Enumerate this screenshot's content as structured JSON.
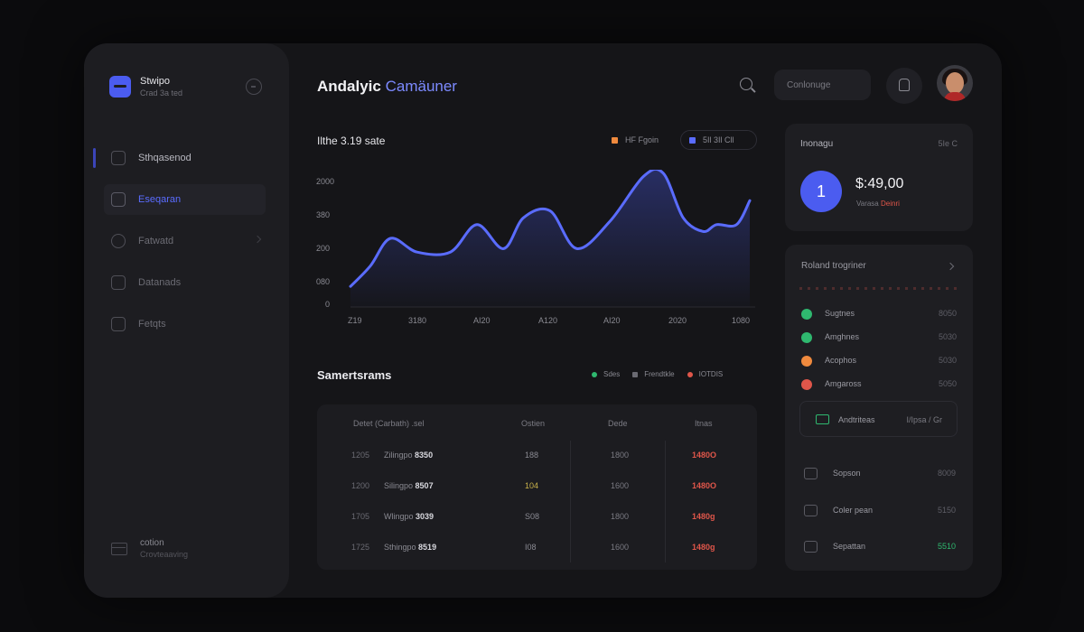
{
  "sidebar": {
    "brand": {
      "name": "Stwipo",
      "sub": "Crad 3a ted"
    },
    "items": [
      {
        "label": "Sthqasenod"
      },
      {
        "label": "Eseqaran"
      },
      {
        "label": "Fatwatd"
      },
      {
        "label": "Datanads"
      },
      {
        "label": "Fetqts"
      }
    ],
    "footer": {
      "title": "cotion",
      "sub": "Crovteaaving"
    }
  },
  "header": {
    "title": "Andalyic",
    "title_accent": "Camäuner",
    "field": "Conlonuge"
  },
  "chart": {
    "title": "Ilthe 3.19 sate",
    "legend": [
      {
        "label": "HF Fgoin",
        "color": "#f08a3e"
      },
      {
        "label": "5Il 3Il Cll",
        "color": "#5a6cff"
      }
    ]
  },
  "chart_data": {
    "type": "area",
    "title": "Ilthe 3.19 sate",
    "y_ticks": [
      "2000",
      "380",
      "200",
      "080",
      "0"
    ],
    "x_ticks": [
      "Z19",
      "3180",
      "AI20",
      "A120",
      "AI20",
      "2020",
      "1080"
    ],
    "ylim": [
      0,
      4
    ],
    "series": [
      {
        "name": "5Il 3Il Cll",
        "color": "#5a6cff",
        "x": [
          0,
          0.3,
          0.6,
          1.0,
          1.5,
          1.9,
          2.3,
          2.6,
          3.0,
          3.4,
          3.9,
          4.4,
          4.7,
          5.0,
          5.3,
          5.5,
          5.8,
          6.0
        ],
        "values": [
          0.6,
          1.2,
          2.0,
          1.6,
          1.6,
          2.4,
          1.7,
          2.6,
          2.8,
          1.7,
          2.5,
          3.8,
          3.9,
          2.6,
          2.2,
          2.4,
          2.4,
          3.1
        ]
      }
    ]
  },
  "transactions": {
    "title": "Samertsrams",
    "legend": [
      {
        "label": "Sdes",
        "color": "#2fb86f",
        "shape": "dot"
      },
      {
        "label": "Frendtkle",
        "color": "#6a6a72",
        "shape": "square"
      },
      {
        "label": "IOTDIS",
        "color": "#e0564a",
        "shape": "dot"
      }
    ],
    "columns": [
      "Detet (Carbath) .sel",
      "Ostien",
      "Dede",
      "Itnas"
    ],
    "rows": [
      {
        "id": "1205",
        "name": "Zilingpo",
        "code": "8350",
        "a": "188",
        "b": "1800",
        "amount": "1480O"
      },
      {
        "id": "1200",
        "name": "Silingpo",
        "code": "8507",
        "a": "104",
        "b": "1600",
        "amount": "1480O"
      },
      {
        "id": "1705",
        "name": "Wlingpo",
        "code": "3039",
        "a": "S08",
        "b": "1800",
        "amount": "1480g"
      },
      {
        "id": "1725",
        "name": "Sthingpo",
        "code": "8519",
        "a": "I08",
        "b": "1600",
        "amount": "1480g"
      }
    ]
  },
  "balance": {
    "label": "Inonagu",
    "code": "5Ie C",
    "badge": "1",
    "amount": "$:49,00",
    "sub": "Varasa",
    "sub_neg": "Deinri"
  },
  "panel": {
    "title": "Roland trogriner",
    "rows": [
      {
        "label": "Sugtnes",
        "value": "8050",
        "color": "#2fb86f"
      },
      {
        "label": "Amghnes",
        "value": "5030",
        "color": "#2fb86f"
      },
      {
        "label": "Acophos",
        "value": "5030",
        "color": "#f08a3e"
      },
      {
        "label": "Amgaross",
        "value": "5050",
        "color": "#e0564a"
      }
    ],
    "action": {
      "label": "Andtriteas",
      "value": "I/Ipsa / Gr"
    },
    "items": [
      {
        "label": "Sopson",
        "value": "8009"
      },
      {
        "label": "Coler pean",
        "value": "5150"
      },
      {
        "label": "Sepattan",
        "value": "5510"
      }
    ]
  }
}
